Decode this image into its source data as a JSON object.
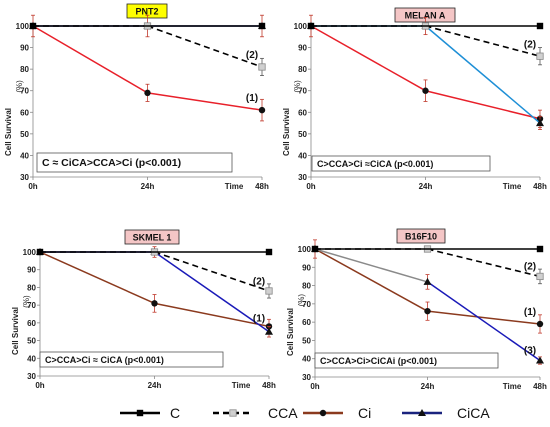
{
  "chart_data": [
    {
      "type": "line",
      "title": "PNT2",
      "title_bg": "#ffff00",
      "x": [
        "0h",
        "24h",
        "48h"
      ],
      "xlabel": "Time",
      "ylabel": "Cell Survival",
      "ylabel_unit": "(%)",
      "ylim": [
        30,
        100
      ],
      "yticks": [
        30,
        40,
        50,
        60,
        70,
        80,
        90,
        100
      ],
      "series": [
        {
          "key": "C",
          "values": [
            100,
            100,
            100
          ],
          "err": [
            0,
            0,
            0
          ]
        },
        {
          "key": "CCA",
          "values": [
            100,
            100,
            81
          ],
          "err": [
            0,
            0,
            4
          ]
        },
        {
          "key": "Ci",
          "values": [
            100,
            69,
            61
          ],
          "err": [
            0,
            4,
            5
          ]
        },
        {
          "key": "CiCA",
          "values": [
            100,
            100,
            100
          ],
          "err": [
            5,
            5,
            5
          ]
        }
      ],
      "annotations": [
        {
          "text": "(2)",
          "x": "48h",
          "y": 87
        },
        {
          "text": "(1)",
          "x": "48h",
          "y": 67
        }
      ],
      "note": "C ≈ CiCA>CCA>Ci  (p<0.001)"
    },
    {
      "type": "line",
      "title": "MELAN A",
      "title_bg": "#f4c6c6",
      "x": [
        "0h",
        "24h",
        "48h"
      ],
      "xlabel": "Time",
      "ylabel": "Cell Survival",
      "ylabel_unit": "(%)",
      "ylim": [
        30,
        100
      ],
      "yticks": [
        30,
        40,
        50,
        60,
        70,
        80,
        90,
        100
      ],
      "series": [
        {
          "key": "C",
          "values": [
            100,
            100,
            100
          ],
          "err": [
            0,
            0,
            0
          ]
        },
        {
          "key": "CCA",
          "values": [
            100,
            100,
            86
          ],
          "err": [
            0,
            0,
            4
          ]
        },
        {
          "key": "Ci",
          "values": [
            100,
            70,
            57
          ],
          "err": [
            0,
            5,
            4
          ]
        },
        {
          "key": "CiCA",
          "values": [
            100,
            100,
            55
          ],
          "err": [
            5,
            4,
            3
          ],
          "color": "#1e8fd6"
        }
      ],
      "annotations": [
        {
          "text": "(2)",
          "x": "48h",
          "y": 92
        }
      ],
      "note": "C>CCA>Ci ≈CiCA (p<0.001)"
    },
    {
      "type": "line",
      "title": "SKMEL 1",
      "title_bg": "#f4c6c6",
      "x": [
        "0h",
        "24h",
        "48h"
      ],
      "xlabel": "Time",
      "ylabel": "Cell Survival",
      "ylabel_unit": "(%)",
      "ylim": [
        30,
        100
      ],
      "yticks": [
        30,
        40,
        50,
        60,
        70,
        80,
        90,
        100
      ],
      "series": [
        {
          "key": "C",
          "values": [
            100,
            100,
            100
          ],
          "err": [
            0,
            0,
            0
          ]
        },
        {
          "key": "CCA",
          "values": [
            100,
            100,
            78
          ],
          "err": [
            0,
            0,
            4
          ]
        },
        {
          "key": "Ci",
          "values": [
            100,
            71,
            58
          ],
          "err": [
            0,
            5,
            4
          ]
        },
        {
          "key": "CiCA",
          "values": [
            100,
            100,
            55
          ],
          "err": [
            0,
            3,
            3
          ]
        }
      ],
      "annotations": [
        {
          "text": "(2)",
          "x": "48h",
          "y": 84
        },
        {
          "text": "(1)",
          "x": "48h",
          "y": 63
        }
      ],
      "note": "C>CCA>Ci ≈ CiCA (p<0.001)"
    },
    {
      "type": "line",
      "title": "B16F10",
      "title_bg": "#f4c6c6",
      "x": [
        "0h",
        "24h",
        "48h"
      ],
      "xlabel": "Time",
      "ylabel": "Cell Survival",
      "ylabel_unit": "(%)",
      "ylim": [
        30,
        100
      ],
      "yticks": [
        30,
        40,
        50,
        60,
        70,
        80,
        90,
        100
      ],
      "series": [
        {
          "key": "C",
          "values": [
            100,
            100,
            100
          ],
          "err": [
            0,
            0,
            0
          ]
        },
        {
          "key": "CCA",
          "values": [
            100,
            100,
            85
          ],
          "err": [
            0,
            0,
            4
          ]
        },
        {
          "key": "Ci",
          "values": [
            100,
            66,
            59
          ],
          "err": [
            0,
            5,
            5
          ]
        },
        {
          "key": "CiCA",
          "values": [
            100,
            82,
            39
          ],
          "err": [
            5,
            4,
            2
          ],
          "gray_first_segment": true
        }
      ],
      "annotations": [
        {
          "text": "(2)",
          "x": "48h",
          "y": 91
        },
        {
          "text": "(1)",
          "x": "48h",
          "y": 66
        },
        {
          "text": "(3)",
          "x": "48h",
          "y": 45
        }
      ],
      "note": "C>CCA>Ci>CiCAi (p<0.001)"
    }
  ],
  "legend": [
    {
      "key": "C",
      "label": "C"
    },
    {
      "key": "CCA",
      "label": "CCA"
    },
    {
      "key": "Ci",
      "label": "Ci"
    },
    {
      "key": "CiCA",
      "label": "CiCA"
    }
  ],
  "styles": {
    "C": {
      "color": "#000000",
      "marker": "square",
      "dash": ""
    },
    "CCA": {
      "color": "#000000",
      "marker": "square-light",
      "dash": "6,4"
    },
    "Ci": {
      "color": "#e8202a",
      "marker": "circle",
      "dash": ""
    },
    "CiCA": {
      "color": "#1a237e",
      "marker": "triangle",
      "dash": ""
    }
  },
  "panel_overrides": {
    "2": {
      "Ci": "#8b3a1e",
      "CiCA": "#1a1ab8"
    },
    "3": {
      "Ci": "#8b3a1e",
      "CiCA": "#1a1ab8"
    }
  },
  "legend_colors": {
    "Ci": "#8b3a1e",
    "CiCA": "#1a237e"
  }
}
